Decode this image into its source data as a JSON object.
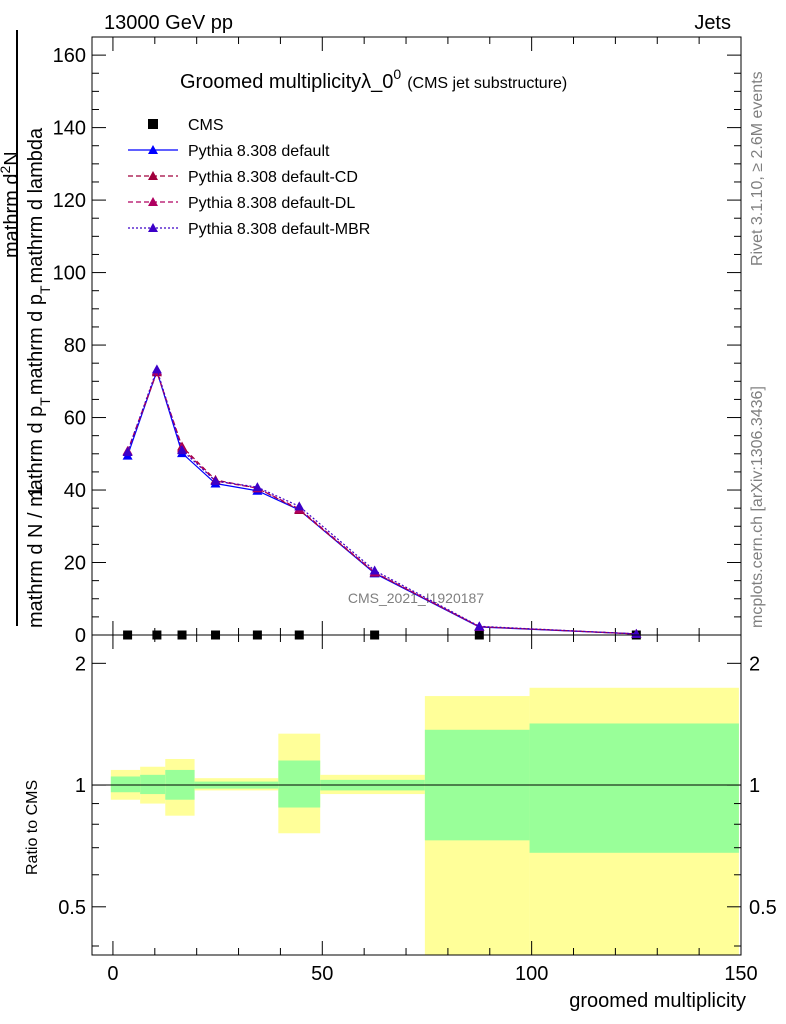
{
  "header": {
    "left": "13000 GeV pp",
    "right": "Jets"
  },
  "side_labels": {
    "rivet": "Rivet 3.1.10, ≥ 2.6M events",
    "mcplots": "mcplots.cern.ch [arXiv:1306.3436]"
  },
  "watermark": "CMS_2021_I1920187",
  "chart_data": [
    {
      "type": "line",
      "title": "Groomed multiplicityλ_0",
      "title_superscript": "0",
      "subtitle": "(CMS jet substructure)",
      "ylabel_parts": {
        "prefix": "1",
        "denominator": "mathrm d N / mathrm d p",
        "sub": "T",
        "suffix": "mathrm d p",
        "suffix_sub": "T",
        "tail": "mathrm d lambda",
        "numerator_top": "mathrm d",
        "numerator_sup": "2",
        "numerator_end": "N"
      },
      "ylabel_display": "mathrm d N / mathrm d p_T mathrm d p_T mathrm d lambda",
      "xlim": [
        -5,
        150
      ],
      "ylim": [
        0,
        165
      ],
      "yticks": [
        0,
        20,
        40,
        60,
        80,
        100,
        120,
        140,
        160
      ],
      "grid": false,
      "legend_position": "top-left",
      "x": [
        3.5,
        10.5,
        16.5,
        24.5,
        34.5,
        44.5,
        62.5,
        87.5,
        125
      ],
      "series": [
        {
          "name": "CMS",
          "color": "#000000",
          "marker": "square",
          "style": "points",
          "values": [
            0.0,
            0.0,
            0.0,
            0.0,
            0.0,
            0.0,
            0.0,
            0.0,
            0.0
          ]
        },
        {
          "name": "Pythia 8.308 default",
          "color": "#0000ff",
          "marker": "triangle",
          "style": "solid",
          "values": [
            49.5,
            72.8,
            50.2,
            41.8,
            39.8,
            34.5,
            17.0,
            2.2,
            0.3
          ]
        },
        {
          "name": "Pythia 8.308 default-CD",
          "color": "#a0003c",
          "marker": "triangle",
          "style": "dashed",
          "values": [
            50.5,
            72.5,
            52.0,
            42.8,
            40.5,
            34.5,
            17.2,
            2.3,
            0.3
          ]
        },
        {
          "name": "Pythia 8.308 default-DL",
          "color": "#b00060",
          "marker": "triangle",
          "style": "dashed",
          "values": [
            50.8,
            72.8,
            51.5,
            42.5,
            40.5,
            34.8,
            17.3,
            2.3,
            0.3
          ]
        },
        {
          "name": "Pythia 8.308 default-MBR",
          "color": "#3c00c8",
          "marker": "triangle",
          "style": "dotted",
          "values": [
            50.5,
            73.3,
            51.0,
            42.5,
            40.8,
            35.5,
            17.8,
            2.4,
            0.3
          ]
        }
      ]
    },
    {
      "type": "area",
      "ylabel": "Ratio to CMS",
      "xlabel": "groomed multiplicity",
      "xlim": [
        -5,
        150
      ],
      "xticks": [
        0,
        50,
        100,
        150
      ],
      "ylim": [
        0.38,
        2.35
      ],
      "yscale": "log",
      "yticks": [
        0.5,
        1,
        2
      ],
      "reference_line": 1,
      "bins": [
        {
          "lo": -0.5,
          "hi": 6.5,
          "yellow": [
            0.92,
            1.09
          ],
          "green": [
            0.96,
            1.05
          ]
        },
        {
          "lo": 6.5,
          "hi": 12.5,
          "yellow": [
            0.9,
            1.11
          ],
          "green": [
            0.95,
            1.06
          ]
        },
        {
          "lo": 12.5,
          "hi": 19.5,
          "yellow": [
            0.84,
            1.16
          ],
          "green": [
            0.92,
            1.09
          ]
        },
        {
          "lo": 19.5,
          "hi": 39.5,
          "yellow": [
            0.97,
            1.04
          ],
          "green": [
            0.98,
            1.02
          ]
        },
        {
          "lo": 39.5,
          "hi": 49.5,
          "yellow": [
            0.76,
            1.34
          ],
          "green": [
            0.88,
            1.15
          ]
        },
        {
          "lo": 49.5,
          "hi": 74.5,
          "yellow": [
            0.95,
            1.06
          ],
          "green": [
            0.97,
            1.03
          ]
        },
        {
          "lo": 74.5,
          "hi": 99.5,
          "yellow": [
            0.38,
            1.66
          ],
          "green": [
            0.73,
            1.37
          ]
        },
        {
          "lo": 99.5,
          "hi": 149.5,
          "yellow": [
            0.38,
            1.74
          ],
          "green": [
            0.68,
            1.42
          ]
        }
      ]
    }
  ]
}
